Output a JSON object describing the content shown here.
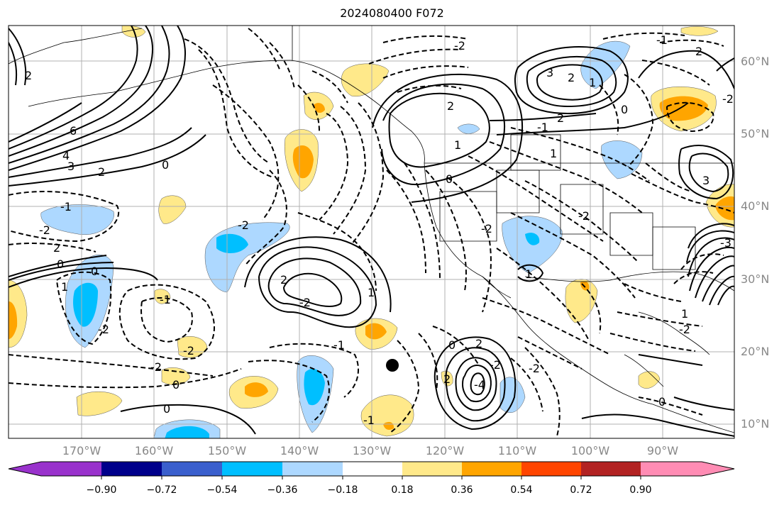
{
  "title": "2024080400 F072",
  "lat_labels": [
    "60°N",
    "50°N",
    "40°N",
    "30°N",
    "20°N",
    "10°N"
  ],
  "lon_labels": [
    "170°W",
    "160°W",
    "150°W",
    "140°W",
    "130°W",
    "120°W",
    "110°W",
    "100°W",
    "90°W"
  ],
  "colorbar": {
    "ticks": [
      "−0.90",
      "−0.72",
      "−0.54",
      "−0.36",
      "−0.18",
      "0.18",
      "0.36",
      "0.54",
      "0.72",
      "0.90"
    ],
    "colors": [
      "#9932cc",
      "#00008b",
      "#3a5fcd",
      "#00bfff",
      "#add8ff",
      "#ffffff",
      "#ffe98a",
      "#ffa500",
      "#ff4500",
      "#b22222",
      "#ff8cb4"
    ]
  },
  "contour_labels": [
    "6",
    "4",
    "3",
    "2",
    "0",
    "-2",
    "2",
    "0",
    "-2",
    "-1",
    "0",
    "1",
    "-2",
    "-1",
    "-2",
    "0",
    "0",
    "2",
    "-2",
    "-2",
    "1",
    "-1",
    "-1",
    "2",
    "3",
    "2",
    "-1",
    "-2",
    "0",
    "2",
    "1",
    "1",
    "-2",
    "2",
    "0",
    "-2",
    "-4",
    "2",
    "-2",
    "-2",
    "1",
    "-2",
    "0",
    "-3",
    "3",
    "-2",
    "-1",
    "0",
    "2",
    "1",
    "1",
    "2"
  ],
  "storm_marker": "black-dot"
}
